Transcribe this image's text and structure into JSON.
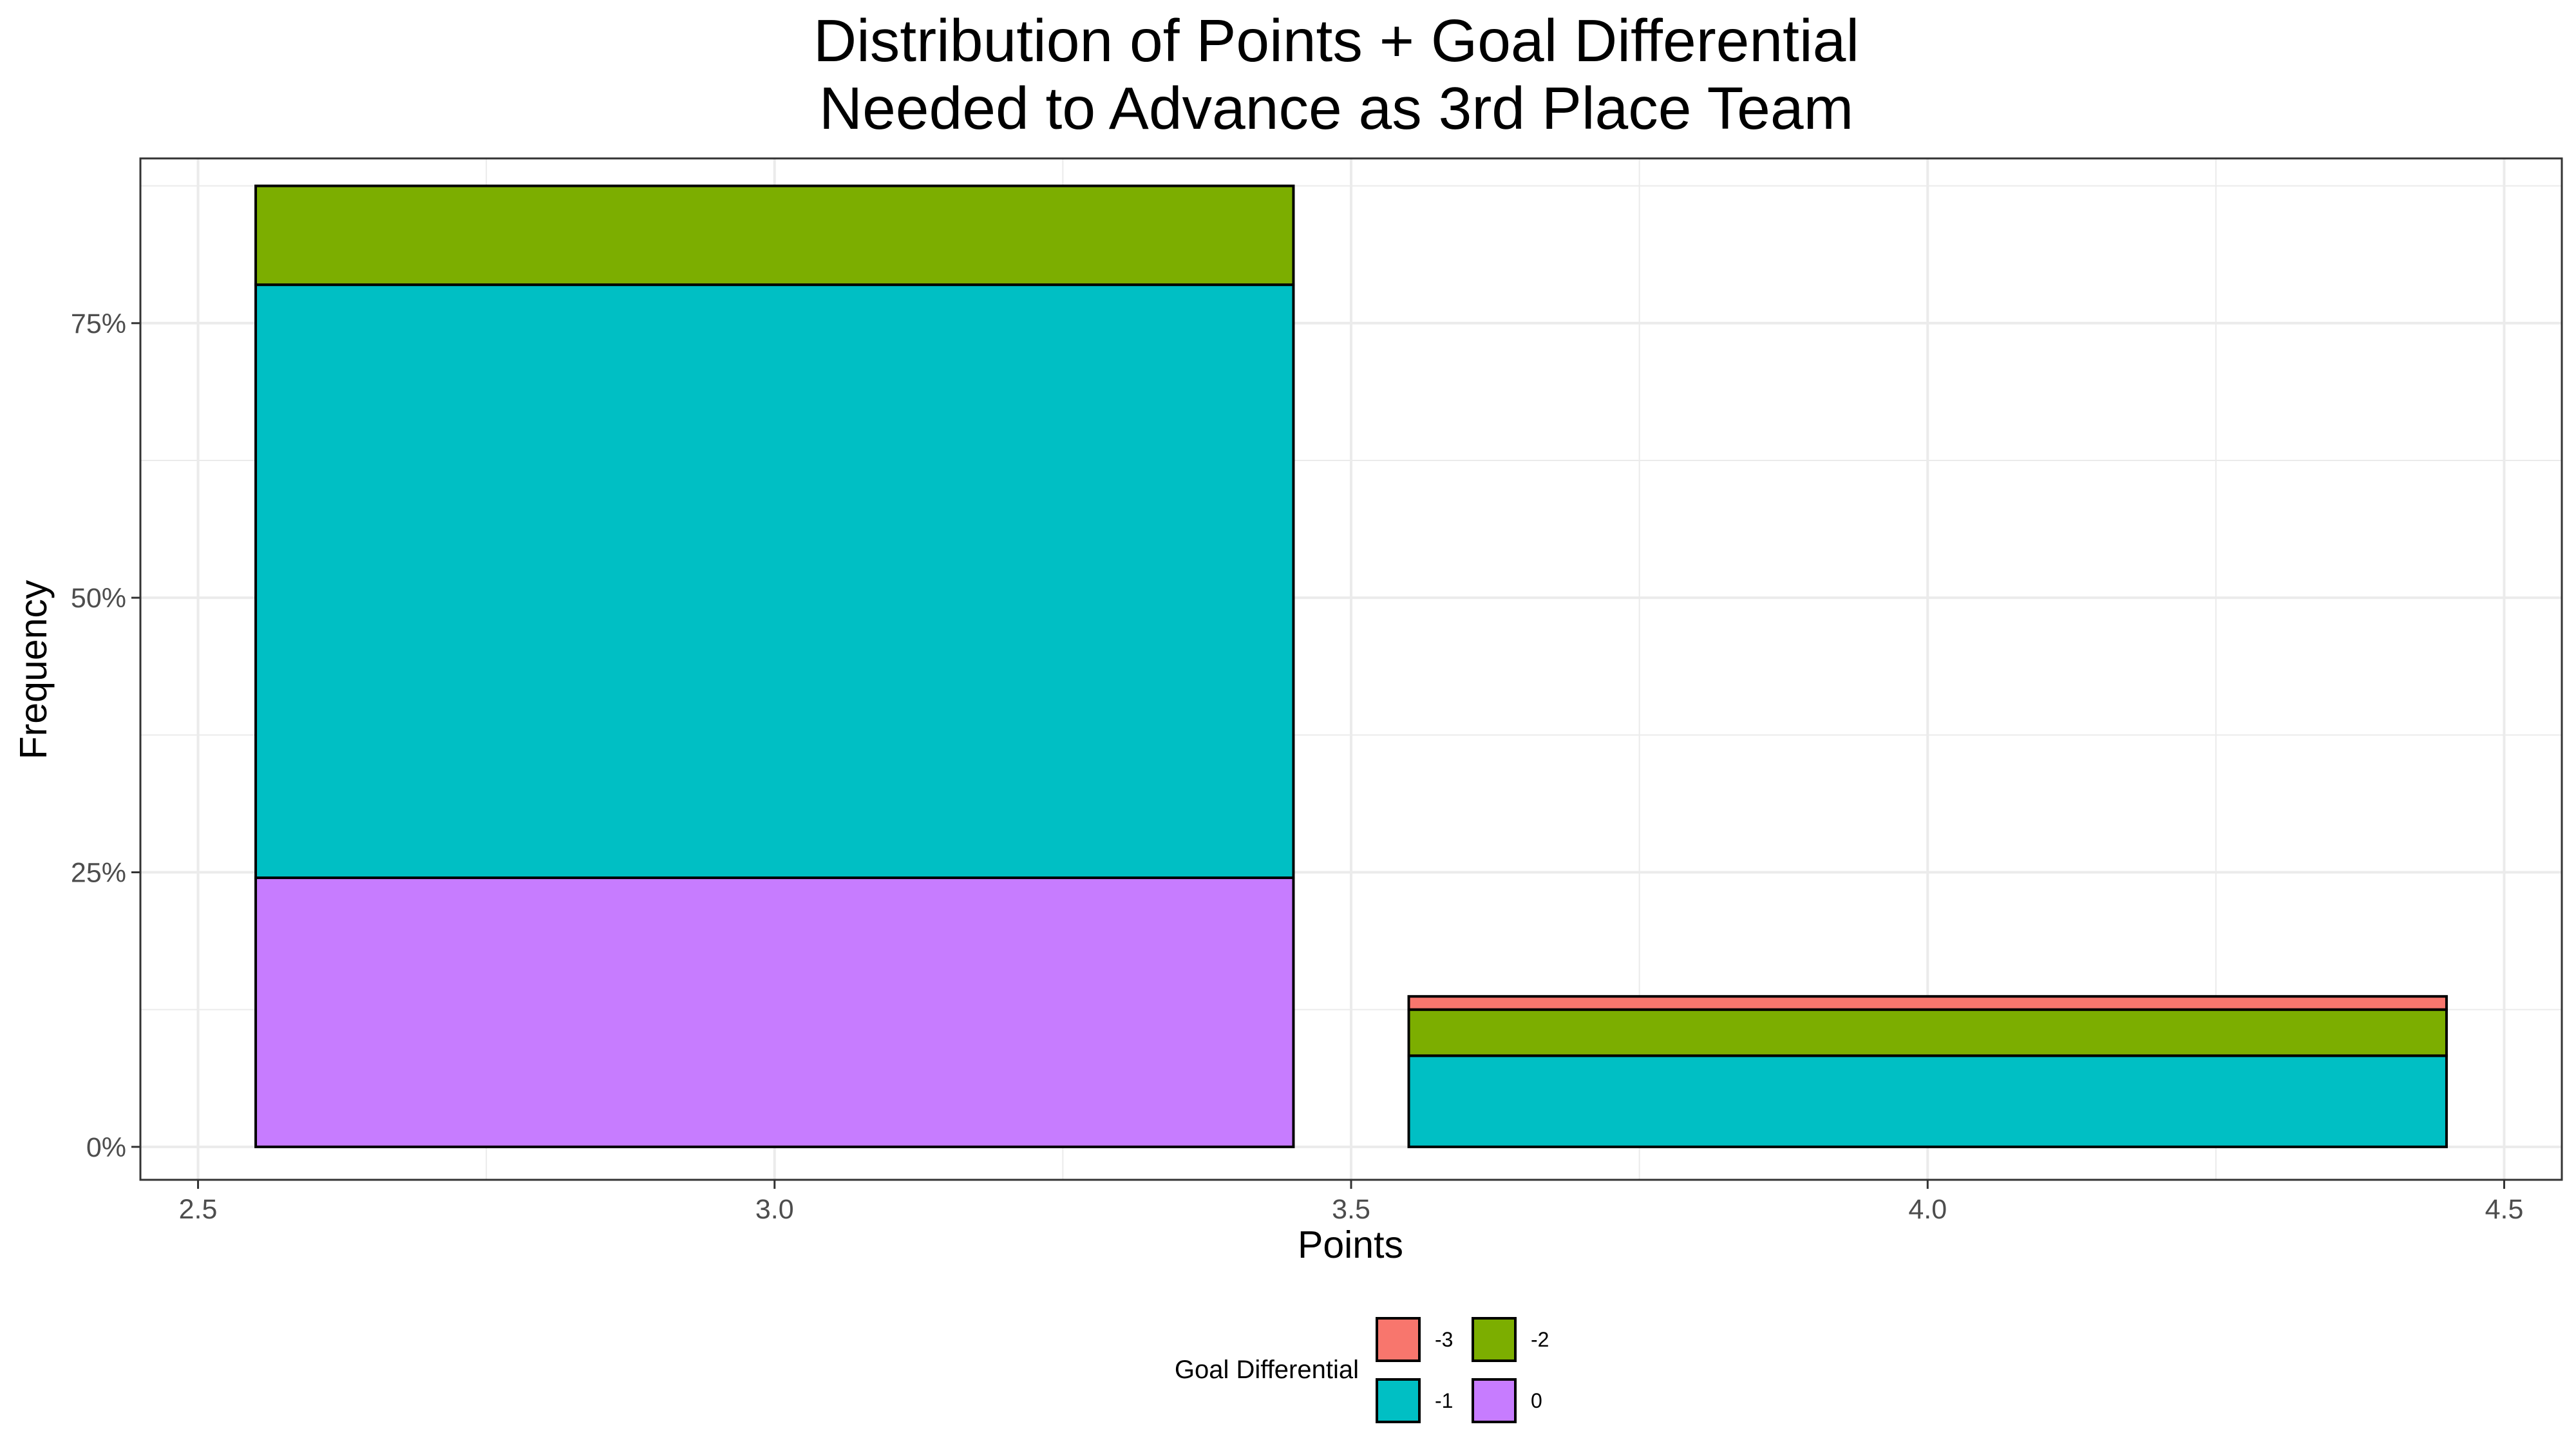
{
  "chart_data": {
    "type": "bar",
    "stacked": true,
    "title": [
      "Distribution of Points + Goal Differential",
      "Needed to Advance as 3rd Place Team"
    ],
    "xlabel": "Points",
    "ylabel": "Frequency",
    "xlim": [
      2.45,
      4.55
    ],
    "ylim": [
      -0.03,
      0.9
    ],
    "x_ticks": [
      2.5,
      3.0,
      3.5,
      4.0,
      4.5
    ],
    "x_tick_labels": [
      "2.5",
      "3.0",
      "3.5",
      "4.0",
      "4.5"
    ],
    "y_ticks": [
      0,
      0.25,
      0.5,
      0.75
    ],
    "y_tick_labels": [
      "0%",
      "25%",
      "50%",
      "75%"
    ],
    "grid": true,
    "bar_width": 0.9,
    "categories": [
      3,
      4
    ],
    "series": [
      {
        "name": "0",
        "color": "#C77CFF",
        "values": [
          0.245,
          0
        ]
      },
      {
        "name": "-1",
        "color": "#00BFC4",
        "values": [
          0.54,
          0.083
        ]
      },
      {
        "name": "-2",
        "color": "#7CAE00",
        "values": [
          0.09,
          0.042
        ]
      },
      {
        "name": "-3",
        "color": "#F8766D",
        "values": [
          0,
          0.012
        ]
      }
    ],
    "legend": {
      "title": "Goal Differential",
      "position": "bottom",
      "order": [
        "-3",
        "-2",
        "-1",
        "0"
      ]
    }
  }
}
